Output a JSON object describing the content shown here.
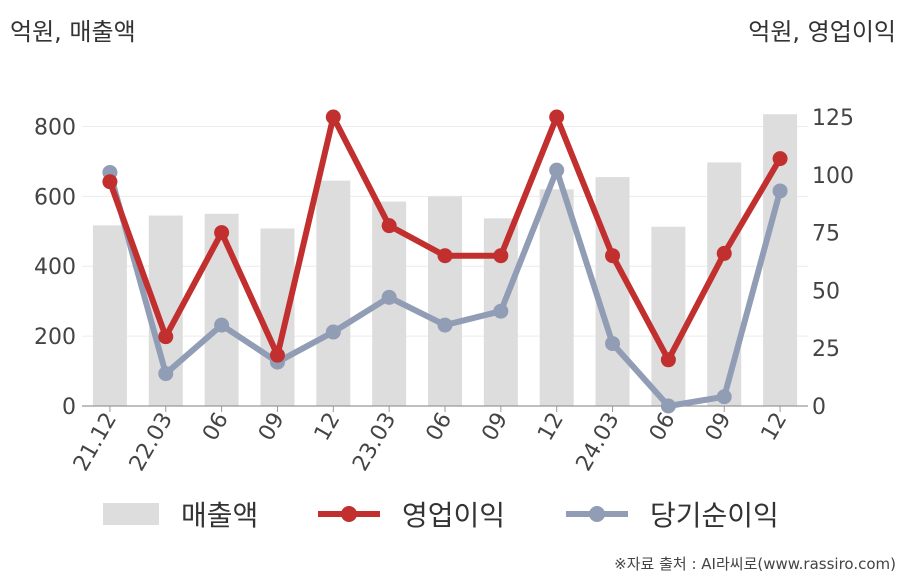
{
  "units": {
    "left": "억원, 매출액",
    "right": "억원, 영업이익"
  },
  "legend": {
    "revenue": "매출액",
    "operating_profit": "영업이익",
    "net_profit": "당기순이익"
  },
  "source": "※자료 출처 : AI라씨로(www.rassiro.com)",
  "colors": {
    "revenue": "#dddddd",
    "operating_profit": "#c1302f",
    "net_profit": "#919cb5"
  },
  "chart_data": {
    "type": "bar+line",
    "categories": [
      "21.12",
      "22.03",
      "06",
      "09",
      "12",
      "23.03",
      "06",
      "09",
      "12",
      "24.03",
      "06",
      "09",
      "12"
    ],
    "left_axis": {
      "label": "억원, 매출액",
      "ylim": [
        0,
        900
      ],
      "ticks": [
        0,
        200,
        400,
        600,
        800
      ]
    },
    "right_axis": {
      "label": "억원, 영업이익",
      "ylim": [
        0,
        125
      ],
      "ticks": [
        0,
        25,
        50,
        75,
        100,
        125
      ]
    },
    "series": [
      {
        "name": "매출액",
        "type": "bar",
        "axis": "left",
        "values": [
          517,
          545,
          550,
          508,
          645,
          585,
          600,
          537,
          620,
          655,
          513,
          697,
          835
        ]
      },
      {
        "name": "영업이익",
        "type": "line",
        "axis": "right",
        "values": [
          97,
          30,
          75,
          22,
          125,
          78,
          65,
          65,
          125,
          65,
          20,
          66,
          107
        ]
      },
      {
        "name": "당기순이익",
        "type": "line",
        "axis": "right",
        "values": [
          101,
          14,
          35,
          19,
          32,
          47,
          35,
          41,
          102,
          27,
          0,
          4,
          93
        ]
      }
    ],
    "grid": true
  }
}
